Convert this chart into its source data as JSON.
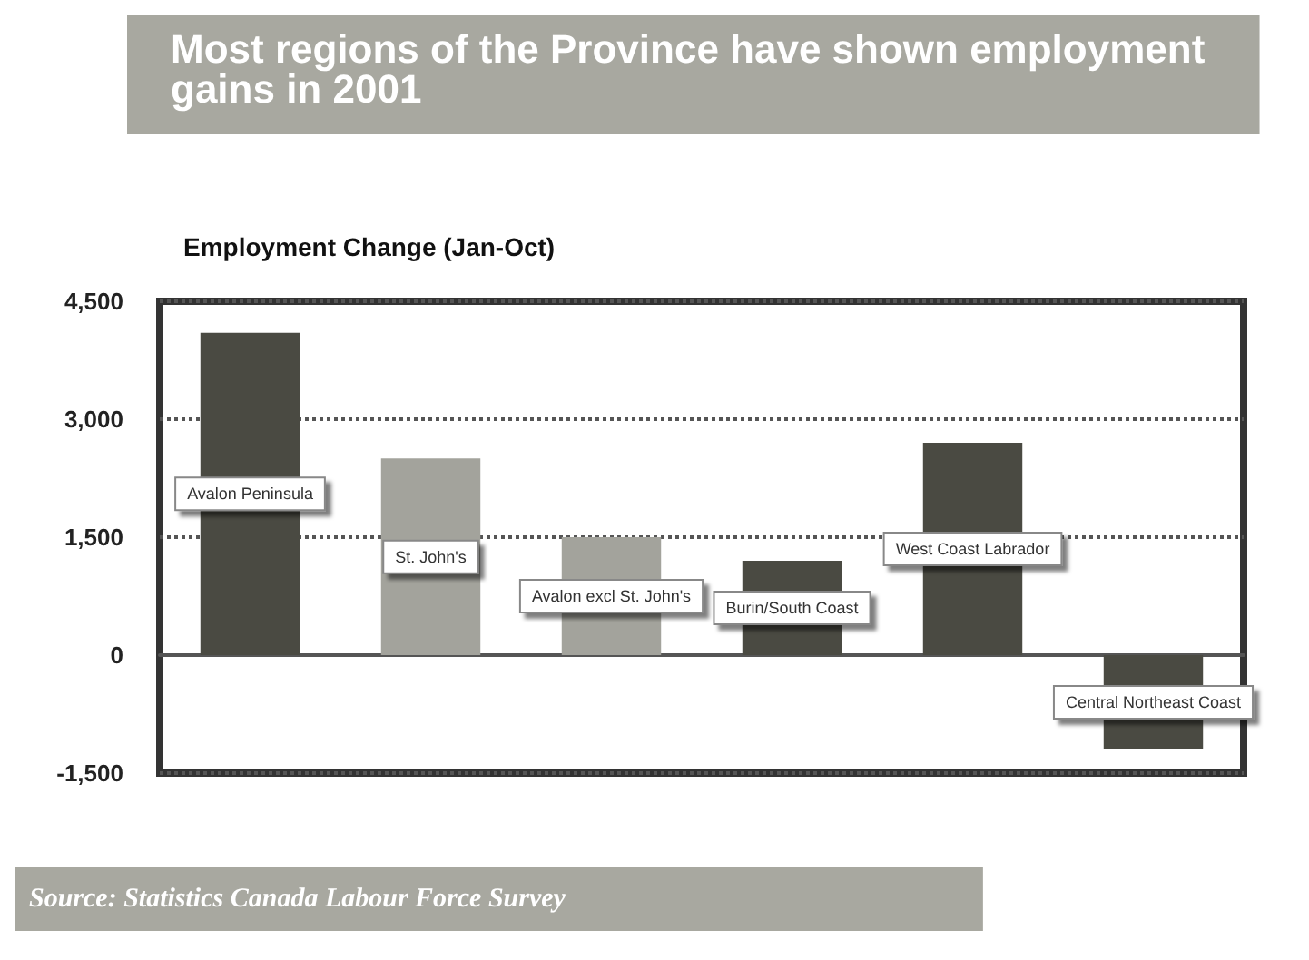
{
  "chart_data": {
    "type": "bar",
    "title": "Most regions of the Province have shown employment gains in 2001",
    "subtitle": "Employment Change (Jan-Oct)",
    "categories": [
      "Avalon Peninsula",
      "St. John's",
      "Avalon excl St. John's",
      "Burin/South Coast",
      "West Coast Labrador",
      "Central Northeast Coast"
    ],
    "values": [
      4100,
      2500,
      1500,
      1200,
      2700,
      -1200
    ],
    "colors": [
      "#4a4a42",
      "#a3a39c",
      "#a3a39c",
      "#4a4a42",
      "#4a4a42",
      "#4a4a42"
    ],
    "ylim": [
      -1500,
      4500
    ],
    "yticks": [
      {
        "value": -1500,
        "label": "-1,500"
      },
      0,
      {
        "value": 1500,
        "label": "1,500"
      },
      {
        "value": 3000,
        "label": "3,000"
      },
      {
        "value": 4500,
        "label": "4,500"
      }
    ],
    "grid": "y",
    "line_style": "dotted",
    "annotations": [
      "Source: Statistics Canada Labour Force Survey"
    ]
  }
}
